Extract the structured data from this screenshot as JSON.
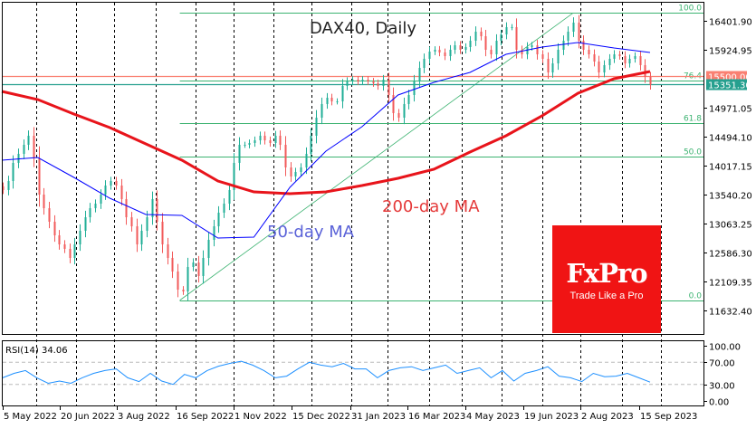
{
  "chart_data": {
    "type": "candlestick",
    "title": "DAX40, Daily",
    "price_axis": {
      "ticks": [
        16401.9,
        15924.95,
        15448.0,
        14971.05,
        14494.1,
        14017.15,
        13540.2,
        13063.25,
        12586.3,
        12109.35,
        11632.4
      ],
      "tick_labels": [
        "16401.90",
        "15924.95",
        "",
        "14971.05",
        "14494.10",
        "14017.15",
        "13540.20",
        "13063.25",
        "12586.30",
        "12109.35",
        "11632.40"
      ]
    },
    "date_labels": [
      "5 May 2022",
      "20 Jun 2022",
      "3 Aug 2022",
      "16 Sep 2022",
      "1 Nov 2022",
      "15 Dec 2022",
      "31 Jan 2023",
      "16 Mar 2023",
      "4 May 2023",
      "19 Jun 2023",
      "2 Aug 2023",
      "15 Sep 2023"
    ],
    "closes": [
      13615,
      13764,
      14062,
      14211,
      14360,
      14509,
      14136,
      13540,
      13316,
      13093,
      12869,
      12720,
      12646,
      12497,
      12720,
      12944,
      13167,
      13316,
      13391,
      13540,
      13689,
      13764,
      13689,
      13466,
      13167,
      13018,
      12720,
      12944,
      13167,
      13466,
      13093,
      12720,
      12497,
      12273,
      11975,
      11945,
      12348,
      12422,
      12199,
      12497,
      12795,
      13018,
      13242,
      13391,
      13615,
      14062,
      14360,
      14360,
      14390,
      14434,
      14509,
      14434,
      14390,
      14509,
      14360,
      13987,
      13838,
      13913,
      13987,
      14211,
      14509,
      14807,
      15031,
      15135,
      15075,
      15075,
      15329,
      15403,
      15433,
      15403,
      15433,
      15403,
      15373,
      15329,
      15433,
      15180,
      14882,
      14807,
      15031,
      15180,
      15403,
      15627,
      15776,
      15895,
      15925,
      15880,
      15821,
      15925,
      15999,
      15925,
      15970,
      16074,
      16223,
      16148,
      15925,
      15850,
      16074,
      16178,
      16298,
      16298,
      15925,
      15850,
      15970,
      15999,
      15850,
      15776,
      15552,
      15701,
      15925,
      16074,
      16223,
      16372,
      16074,
      15925,
      15850,
      15731,
      15552,
      15672,
      15776,
      15850,
      15821,
      15701,
      15776,
      15821,
      15672,
      15478,
      15351.3
    ],
    "ma200": {
      "label": "200-day MA",
      "color": "#e8141b",
      "values": [
        15239,
        15105,
        14867,
        14643,
        14375,
        14107,
        13764,
        13585,
        13555,
        13585,
        13689,
        13808,
        13957,
        14241,
        14509,
        14837,
        15210,
        15448,
        15567
      ]
    },
    "ma50": {
      "label": "50-day MA",
      "color": "#0000ff",
      "label_color": "#5a62d8",
      "values": [
        14107,
        14151,
        13823,
        13480,
        13212,
        13197,
        12824,
        12839,
        13659,
        14256,
        14658,
        15180,
        15388,
        15552,
        15850,
        15970,
        16044,
        15955,
        15880
      ]
    },
    "horizontal_levels": [
      {
        "price": 15500.0,
        "label": "15500.00",
        "color": "#fa8072"
      },
      {
        "price": 15351.3,
        "label": "15351.30",
        "color": "#26a08f"
      }
    ],
    "fibonacci": {
      "high": 16530,
      "low": 11800,
      "levels": [
        {
          "ratio": 1.0,
          "label": "100.0"
        },
        {
          "ratio": 0.764,
          "label": "76.4"
        },
        {
          "ratio": 0.618,
          "label": "61.8"
        },
        {
          "ratio": 0.5,
          "label": "50.0"
        },
        {
          "ratio": 0.0,
          "label": "0.0"
        }
      ],
      "color": "#3cb371"
    },
    "colors": {
      "up": "#1fae96",
      "down": "#f25a5a"
    },
    "rsi": {
      "label": "RSI(14) 34.06",
      "period": 14,
      "color": "#1e90ff",
      "levels": [
        70,
        30
      ],
      "axis_labels": [
        "100.00",
        "70.00",
        "30.00",
        "0.00"
      ],
      "ylim": [
        0,
        100
      ],
      "values": [
        42,
        50,
        55,
        42,
        32,
        36,
        32,
        42,
        50,
        55,
        58,
        42,
        35,
        50,
        36,
        30,
        48,
        42,
        55,
        63,
        68,
        72,
        65,
        55,
        42,
        45,
        58,
        70,
        65,
        62,
        68,
        58,
        58,
        42,
        55,
        60,
        62,
        55,
        60,
        65,
        50,
        55,
        60,
        42,
        55,
        36,
        50,
        55,
        62,
        45,
        42,
        35,
        50,
        44,
        45,
        50,
        42,
        34.06
      ]
    }
  },
  "logo": {
    "brand": "FxPro",
    "tagline": "Trade Like a Pro"
  }
}
